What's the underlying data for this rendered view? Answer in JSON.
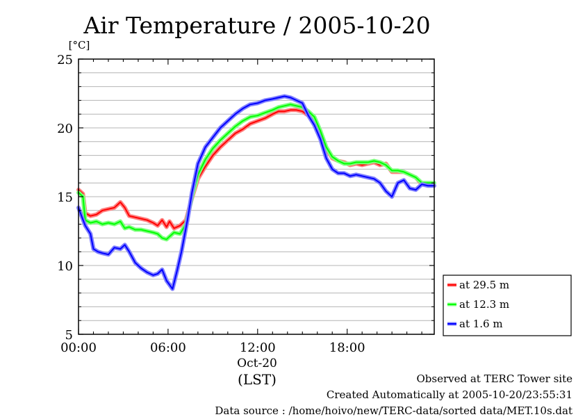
{
  "chart_data": {
    "type": "line",
    "title": "Air Temperature / 2005-10-20",
    "ylabel": "[°C]",
    "xlabel": "(LST)",
    "date_label": "Oct-20",
    "x_unit": "hours",
    "xlim": [
      0,
      23.833
    ],
    "ylim": [
      5,
      25
    ],
    "grid": true,
    "legend_position": "right",
    "x_ticks": [
      {
        "value": 0,
        "label": "00:00"
      },
      {
        "value": 6,
        "label": "06:00"
      },
      {
        "value": 12,
        "label": "12:00"
      },
      {
        "value": 18,
        "label": "18:00"
      }
    ],
    "y_ticks": [
      5,
      10,
      15,
      20,
      25
    ],
    "series": [
      {
        "name": "at 29.5 m",
        "color": "#ff0000",
        "band_color": "#ff8080",
        "points": [
          [
            0,
            15.5
          ],
          [
            0.3,
            15.2
          ],
          [
            0.45,
            13.8
          ],
          [
            0.8,
            13.6
          ],
          [
            1.2,
            13.7
          ],
          [
            1.6,
            14.0
          ],
          [
            2.0,
            14.1
          ],
          [
            2.4,
            14.2
          ],
          [
            2.8,
            14.6
          ],
          [
            3.1,
            14.2
          ],
          [
            3.4,
            13.6
          ],
          [
            3.8,
            13.5
          ],
          [
            4.2,
            13.4
          ],
          [
            4.6,
            13.3
          ],
          [
            5.0,
            13.1
          ],
          [
            5.3,
            12.9
          ],
          [
            5.6,
            13.3
          ],
          [
            5.9,
            12.8
          ],
          [
            6.1,
            13.2
          ],
          [
            6.4,
            12.7
          ],
          [
            6.8,
            12.9
          ],
          [
            7.2,
            13.3
          ],
          [
            7.6,
            14.9
          ],
          [
            8.0,
            16.3
          ],
          [
            8.5,
            17.2
          ],
          [
            9.0,
            18.0
          ],
          [
            9.5,
            18.6
          ],
          [
            10.0,
            19.1
          ],
          [
            10.5,
            19.6
          ],
          [
            11.0,
            19.9
          ],
          [
            11.5,
            20.3
          ],
          [
            12.0,
            20.5
          ],
          [
            12.5,
            20.7
          ],
          [
            13.0,
            21.0
          ],
          [
            13.4,
            21.2
          ],
          [
            13.8,
            21.2
          ],
          [
            14.2,
            21.3
          ],
          [
            14.6,
            21.3
          ],
          [
            15.0,
            21.2
          ],
          [
            15.4,
            20.9
          ],
          [
            15.8,
            20.5
          ],
          [
            16.2,
            19.5
          ],
          [
            16.6,
            18.5
          ],
          [
            17.0,
            17.8
          ],
          [
            17.4,
            17.6
          ],
          [
            17.8,
            17.5
          ],
          [
            18.2,
            17.3
          ],
          [
            18.6,
            17.4
          ],
          [
            19.0,
            17.3
          ],
          [
            19.4,
            17.4
          ],
          [
            19.8,
            17.5
          ],
          [
            20.2,
            17.3
          ],
          [
            20.6,
            17.4
          ],
          [
            21.0,
            16.8
          ],
          [
            21.4,
            16.8
          ],
          [
            21.8,
            16.8
          ],
          [
            22.2,
            16.6
          ],
          [
            22.6,
            16.4
          ],
          [
            23.0,
            15.9
          ],
          [
            23.4,
            15.9
          ],
          [
            23.83,
            15.8
          ]
        ]
      },
      {
        "name": "at 12.3 m",
        "color": "#00ff00",
        "band_color": "#80ff80",
        "points": [
          [
            0,
            15.3
          ],
          [
            0.3,
            15.0
          ],
          [
            0.45,
            13.3
          ],
          [
            0.8,
            13.1
          ],
          [
            1.2,
            13.2
          ],
          [
            1.6,
            13.0
          ],
          [
            2.0,
            13.1
          ],
          [
            2.4,
            13.0
          ],
          [
            2.8,
            13.2
          ],
          [
            3.1,
            12.7
          ],
          [
            3.4,
            12.8
          ],
          [
            3.8,
            12.6
          ],
          [
            4.2,
            12.6
          ],
          [
            4.6,
            12.5
          ],
          [
            5.0,
            12.4
          ],
          [
            5.3,
            12.3
          ],
          [
            5.6,
            12.0
          ],
          [
            5.9,
            11.9
          ],
          [
            6.1,
            12.1
          ],
          [
            6.4,
            12.4
          ],
          [
            6.8,
            12.3
          ],
          [
            7.2,
            13.0
          ],
          [
            7.6,
            15.0
          ],
          [
            8.0,
            16.6
          ],
          [
            8.5,
            17.7
          ],
          [
            9.0,
            18.5
          ],
          [
            9.5,
            19.1
          ],
          [
            10.0,
            19.6
          ],
          [
            10.5,
            20.1
          ],
          [
            11.0,
            20.5
          ],
          [
            11.5,
            20.8
          ],
          [
            12.0,
            20.9
          ],
          [
            12.5,
            21.1
          ],
          [
            13.0,
            21.3
          ],
          [
            13.4,
            21.5
          ],
          [
            13.8,
            21.6
          ],
          [
            14.2,
            21.7
          ],
          [
            14.6,
            21.6
          ],
          [
            15.0,
            21.5
          ],
          [
            15.4,
            21.2
          ],
          [
            15.8,
            20.8
          ],
          [
            16.2,
            19.8
          ],
          [
            16.6,
            18.6
          ],
          [
            17.0,
            17.9
          ],
          [
            17.4,
            17.6
          ],
          [
            17.8,
            17.4
          ],
          [
            18.2,
            17.4
          ],
          [
            18.6,
            17.5
          ],
          [
            19.0,
            17.5
          ],
          [
            19.4,
            17.5
          ],
          [
            19.8,
            17.6
          ],
          [
            20.2,
            17.5
          ],
          [
            20.6,
            17.3
          ],
          [
            21.0,
            16.9
          ],
          [
            21.4,
            16.9
          ],
          [
            21.8,
            16.8
          ],
          [
            22.2,
            16.6
          ],
          [
            22.6,
            16.4
          ],
          [
            23.0,
            16.0
          ],
          [
            23.4,
            16.0
          ],
          [
            23.83,
            16.0
          ]
        ]
      },
      {
        "name": "at 1.6 m",
        "color": "#0000ff",
        "band_color": "#8080ff",
        "points": [
          [
            0,
            14.2
          ],
          [
            0.2,
            13.6
          ],
          [
            0.45,
            12.9
          ],
          [
            0.8,
            12.3
          ],
          [
            1.0,
            11.2
          ],
          [
            1.3,
            11.0
          ],
          [
            1.6,
            10.9
          ],
          [
            2.0,
            10.8
          ],
          [
            2.4,
            11.3
          ],
          [
            2.8,
            11.2
          ],
          [
            3.1,
            11.5
          ],
          [
            3.4,
            11.0
          ],
          [
            3.8,
            10.2
          ],
          [
            4.2,
            9.8
          ],
          [
            4.6,
            9.5
          ],
          [
            5.0,
            9.3
          ],
          [
            5.3,
            9.4
          ],
          [
            5.6,
            9.7
          ],
          [
            5.9,
            8.9
          ],
          [
            6.1,
            8.6
          ],
          [
            6.3,
            8.3
          ],
          [
            6.6,
            9.6
          ],
          [
            6.9,
            11.0
          ],
          [
            7.3,
            13.3
          ],
          [
            7.6,
            15.3
          ],
          [
            8.0,
            17.4
          ],
          [
            8.5,
            18.6
          ],
          [
            9.0,
            19.3
          ],
          [
            9.5,
            20.0
          ],
          [
            10.0,
            20.5
          ],
          [
            10.5,
            21.0
          ],
          [
            11.0,
            21.4
          ],
          [
            11.5,
            21.7
          ],
          [
            12.0,
            21.8
          ],
          [
            12.5,
            22.0
          ],
          [
            13.0,
            22.1
          ],
          [
            13.4,
            22.2
          ],
          [
            13.8,
            22.3
          ],
          [
            14.2,
            22.2
          ],
          [
            14.6,
            22.0
          ],
          [
            15.0,
            21.8
          ],
          [
            15.4,
            20.9
          ],
          [
            15.8,
            20.2
          ],
          [
            16.2,
            19.2
          ],
          [
            16.6,
            17.8
          ],
          [
            17.0,
            17.0
          ],
          [
            17.4,
            16.7
          ],
          [
            17.8,
            16.7
          ],
          [
            18.2,
            16.5
          ],
          [
            18.6,
            16.6
          ],
          [
            19.0,
            16.5
          ],
          [
            19.4,
            16.4
          ],
          [
            19.8,
            16.3
          ],
          [
            20.2,
            16.0
          ],
          [
            20.6,
            15.4
          ],
          [
            21.0,
            15.0
          ],
          [
            21.4,
            16.0
          ],
          [
            21.8,
            16.2
          ],
          [
            22.2,
            15.6
          ],
          [
            22.6,
            15.5
          ],
          [
            23.0,
            15.9
          ],
          [
            23.4,
            15.8
          ],
          [
            23.83,
            15.8
          ]
        ]
      }
    ]
  },
  "footer": {
    "observed": "Observed at TERC Tower site",
    "created": "Created Automatically at 2005-10-20/23:55:31",
    "source": "Data source : /home/hoivo/new/TERC-data/sorted  data/MET.10s.dat"
  }
}
